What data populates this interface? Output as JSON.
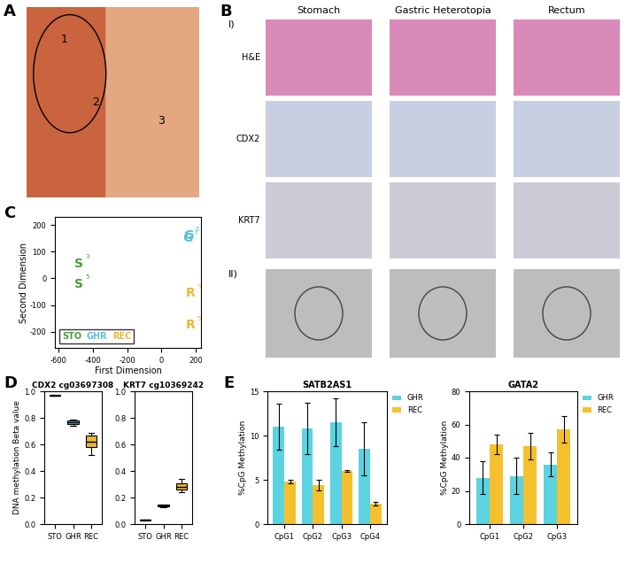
{
  "panel_labels": [
    "A",
    "B",
    "C",
    "D",
    "E"
  ],
  "panel_a": {
    "type": "photo",
    "labels": [
      "1",
      "2",
      "3"
    ]
  },
  "panel_b": {
    "type": "photo_grid",
    "columns": [
      "Stomach",
      "Gastric Heterotopia",
      "Rectum"
    ],
    "section_labels": [
      "I)",
      "II)"
    ],
    "rows": [
      "H&E",
      "CDX2",
      "KRT7"
    ]
  },
  "chart_data": [
    {
      "type": "scatter",
      "xlabel": "First Dimension",
      "ylabel": "Second Dimension",
      "xlim": [
        -620,
        230
      ],
      "ylim": [
        -260,
        230
      ],
      "xticks": [
        -600,
        -400,
        -200,
        0,
        200
      ],
      "yticks": [
        -200,
        -100,
        0,
        100,
        200
      ],
      "legend": "lower left",
      "series": [
        {
          "name": "STO",
          "letter": "S",
          "color": "#4a9a3a",
          "points": [
            {
              "x": -480,
              "y": 55,
              "replicate": "3"
            },
            {
              "x": -480,
              "y": -20,
              "replicate": "5"
            }
          ]
        },
        {
          "name": "GHR",
          "letter": "G",
          "color": "#5bc0d8",
          "points": [
            {
              "x": 150,
              "y": 150,
              "replicate": "3"
            },
            {
              "x": 160,
              "y": 160,
              "replicate": "5"
            }
          ]
        },
        {
          "name": "REC",
          "letter": "R",
          "color": "#e8b83a",
          "points": [
            {
              "x": 170,
              "y": -55,
              "replicate": "3"
            },
            {
              "x": 170,
              "y": -175,
              "replicate": "5"
            }
          ]
        }
      ]
    },
    {
      "type": "box",
      "title": "CDX2 cg03697308",
      "ylabel": "DNA methylation Beta value",
      "categories": [
        "STO",
        "GHR",
        "REC"
      ],
      "colors": [
        "#4a9a3a",
        "#5bc0d8",
        "#e8b83a"
      ],
      "ylim": [
        0,
        1
      ],
      "yticks": [
        0.0,
        0.2,
        0.4,
        0.6,
        0.8,
        1.0
      ],
      "boxes": [
        {
          "whislo": 0.965,
          "q1": 0.968,
          "median": 0.97,
          "q3": 0.972,
          "whishi": 0.975
        },
        {
          "whislo": 0.74,
          "q1": 0.755,
          "median": 0.77,
          "q3": 0.78,
          "whishi": 0.79
        },
        {
          "whislo": 0.52,
          "q1": 0.58,
          "median": 0.62,
          "q3": 0.665,
          "whishi": 0.69
        }
      ]
    },
    {
      "type": "box",
      "title": "KRT7 cg10369242",
      "categories": [
        "STO",
        "GHR",
        "REC"
      ],
      "colors": [
        "#4a9a3a",
        "#5bc0d8",
        "#e8b83a"
      ],
      "ylim": [
        0,
        1
      ],
      "yticks": [
        0.0,
        0.2,
        0.4,
        0.6,
        0.8,
        1.0
      ],
      "boxes": [
        {
          "whislo": 0.028,
          "q1": 0.03,
          "median": 0.032,
          "q3": 0.034,
          "whishi": 0.036
        },
        {
          "whislo": 0.13,
          "q1": 0.135,
          "median": 0.14,
          "q3": 0.145,
          "whishi": 0.15
        },
        {
          "whislo": 0.24,
          "q1": 0.26,
          "median": 0.28,
          "q3": 0.31,
          "whishi": 0.34
        }
      ]
    },
    {
      "type": "bar",
      "title": "SATB2AS1",
      "ylabel": "%CpG Methylation",
      "categories": [
        "CpG1",
        "CpG2",
        "CpG3",
        "CpG4"
      ],
      "ylim": [
        0,
        15
      ],
      "yticks": [
        0,
        5,
        10,
        15
      ],
      "legend": "right",
      "series": [
        {
          "name": "GHR",
          "color": "#5bd3e0",
          "values": [
            11.0,
            10.8,
            11.5,
            8.5
          ],
          "errors": [
            2.6,
            2.9,
            2.7,
            3.0
          ]
        },
        {
          "name": "REC",
          "color": "#f5c02e",
          "values": [
            4.8,
            4.4,
            6.0,
            2.3
          ],
          "errors": [
            0.2,
            0.6,
            0.1,
            0.2
          ]
        }
      ]
    },
    {
      "type": "bar",
      "title": "GATA2",
      "ylabel": "%CpG Methylation",
      "categories": [
        "CpG1",
        "CpG2",
        "CpG3"
      ],
      "ylim": [
        0,
        80
      ],
      "yticks": [
        0,
        20,
        40,
        60,
        80
      ],
      "legend": "right",
      "series": [
        {
          "name": "GHR",
          "color": "#5bd3e0",
          "values": [
            28,
            29,
            36
          ],
          "errors": [
            10,
            11,
            7
          ]
        },
        {
          "name": "REC",
          "color": "#f5c02e",
          "values": [
            48,
            47,
            57
          ],
          "errors": [
            6,
            8,
            8
          ]
        }
      ]
    }
  ]
}
